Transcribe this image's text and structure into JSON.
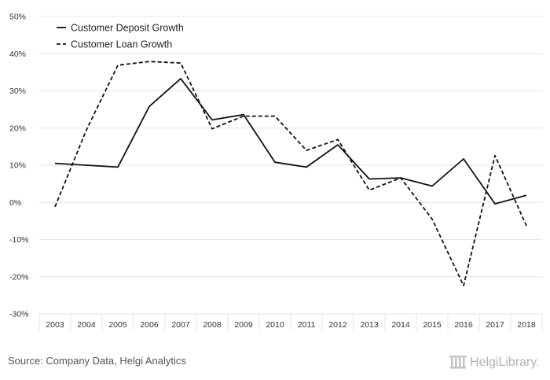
{
  "chart_data": {
    "type": "line",
    "title": "",
    "xlabel": "",
    "ylabel": "",
    "categories": [
      "2003",
      "2004",
      "2005",
      "2006",
      "2007",
      "2008",
      "2009",
      "2010",
      "2011",
      "2012",
      "2013",
      "2014",
      "2015",
      "2016",
      "2017",
      "2018"
    ],
    "ylim": [
      -30,
      50
    ],
    "yticks": [
      50,
      40,
      30,
      20,
      10,
      0,
      -10,
      -20,
      -30
    ],
    "ytick_labels": [
      "50%",
      "40%",
      "30%",
      "20%",
      "10%",
      "0%",
      "-10%",
      "-20%",
      "-30%"
    ],
    "grid": true,
    "legend_position": "top-left",
    "series": [
      {
        "name": "Customer Deposit Growth",
        "style": "solid",
        "color": "#111111",
        "values": [
          10.5,
          10.0,
          9.5,
          25.8,
          33.3,
          22.2,
          23.6,
          10.8,
          9.5,
          15.5,
          6.3,
          6.6,
          4.4,
          11.7,
          -0.4,
          1.9
        ]
      },
      {
        "name": "Customer Loan Growth",
        "style": "dashed",
        "color": "#111111",
        "values": [
          -1.2,
          19.5,
          36.9,
          37.9,
          37.5,
          19.8,
          23.2,
          23.2,
          14.0,
          16.9,
          3.3,
          6.6,
          -4.5,
          -22.4,
          12.6,
          -6.3
        ]
      }
    ]
  },
  "footer": {
    "source": "Source: Company Data, Helgi Analytics",
    "brand": "HelgiLibrary."
  },
  "colors": {
    "line": "#111111",
    "grid": "#e6e6e6",
    "axis_text": "#333333"
  }
}
